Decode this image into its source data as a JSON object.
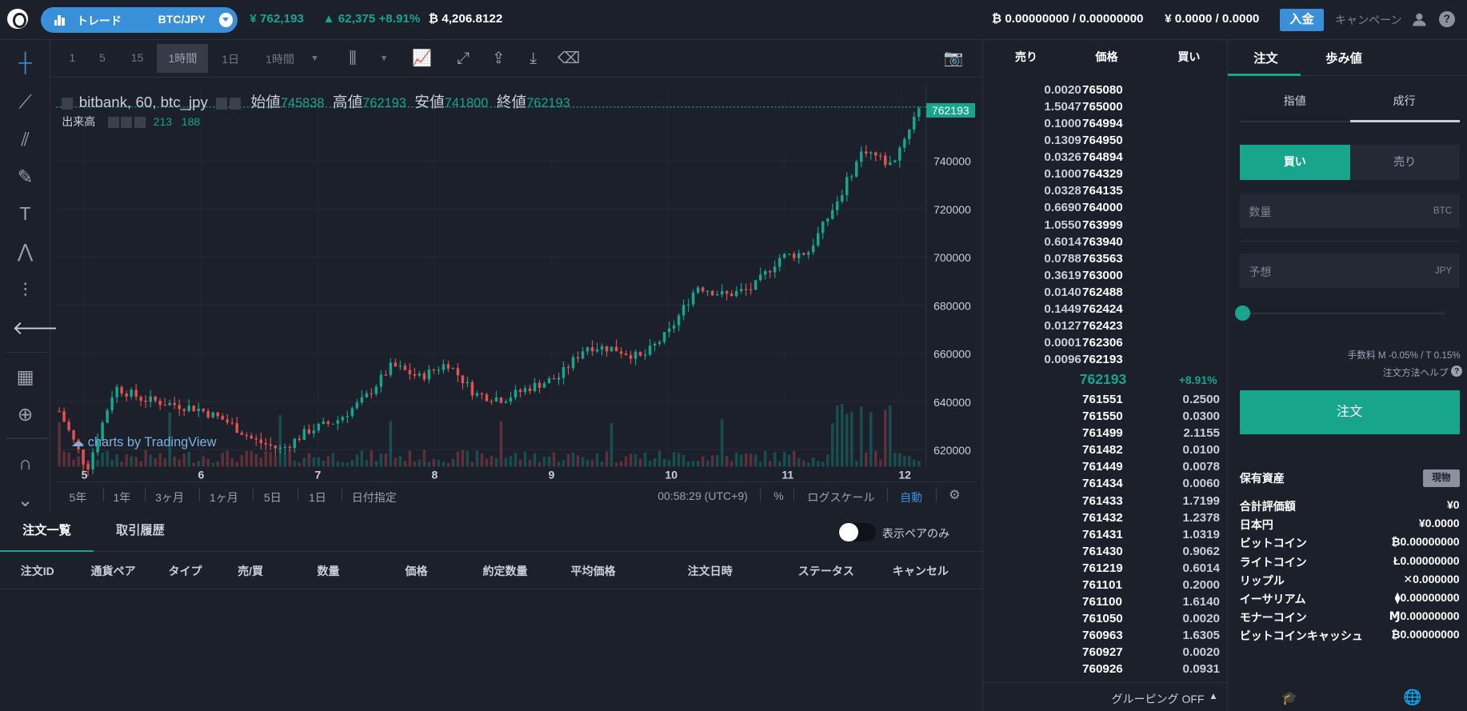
{
  "topbar": {
    "pair_menu_label": "トレード",
    "pair": "BTC/JPY",
    "last_price": "¥ 762,193",
    "change": "62,375 +8.91%",
    "volume": "₿ 4,206.8122",
    "btc_balance": "₿ 0.00000000 / 0.00000000",
    "jpy_balance": "¥ 0.0000 / 0.0000",
    "deposit": "入金",
    "campaign": "キャンペーン",
    "help": "?"
  },
  "chart_toolbar": {
    "intervals": [
      "1",
      "5",
      "15",
      "1時間",
      "1日",
      "1時間"
    ],
    "selected": "1時間"
  },
  "chart_legend": {
    "title": "bitbank, 60, btc_jpy",
    "open_label": "始値",
    "open": "745838",
    "high_label": "高値",
    "high": "762193",
    "low_label": "安値",
    "low": "741800",
    "close_label": "終値",
    "close": "762193",
    "volume_label": "出来高",
    "vol1": "213",
    "vol2": "188",
    "watermark": "charts by TradingView",
    "last_tag": "762193"
  },
  "chart_data": {
    "type": "candlestick",
    "x_ticks": [
      "5",
      "6",
      "7",
      "8",
      "9",
      "10",
      "11",
      "12"
    ],
    "y_ticks": [
      620000,
      640000,
      660000,
      680000,
      700000,
      720000,
      740000
    ],
    "ylim": [
      606000,
      764000
    ],
    "series": [
      {
        "name": "btc_jpy",
        "close": [
          636000,
          612000,
          646000,
          641000,
          639000,
          637000,
          632000,
          624000,
          620000,
          628000,
          632000,
          641000,
          655000,
          650000,
          656000,
          643000,
          641000,
          646000,
          650000,
          663000,
          662000,
          658000,
          669000,
          688000,
          684000,
          687000,
          700000,
          702000,
          722000,
          745000,
          738000,
          762193
        ]
      }
    ],
    "up_color": "#17a58e",
    "down_color": "#e0514f"
  },
  "chart_bottom": {
    "ranges": [
      "5年",
      "1年",
      "3ヶ月",
      "1ヶ月",
      "5日",
      "1日",
      "日付指定"
    ],
    "time": "00:58:29 (UTC+9)",
    "percent": "%",
    "log": "ログスケール",
    "auto": "自動"
  },
  "orders": {
    "tabs": [
      "注文一覧",
      "取引履歴"
    ],
    "toggle_label": "表示ペアのみ",
    "columns": [
      "注文ID",
      "通貨ペア",
      "タイプ",
      "売/買",
      "数量",
      "価格",
      "約定数量",
      "平均価格",
      "注文日時",
      "ステータス",
      "キャンセル"
    ]
  },
  "orderbook": {
    "headers": {
      "sell": "売り",
      "price": "価格",
      "buy": "買い"
    },
    "asks": [
      [
        "0.0020",
        "765080"
      ],
      [
        "1.5047",
        "765000"
      ],
      [
        "0.1000",
        "764994"
      ],
      [
        "0.1309",
        "764950"
      ],
      [
        "0.0326",
        "764894"
      ],
      [
        "0.1000",
        "764329"
      ],
      [
        "0.0328",
        "764135"
      ],
      [
        "0.6690",
        "764000"
      ],
      [
        "1.0550",
        "763999"
      ],
      [
        "0.6014",
        "763940"
      ],
      [
        "0.0788",
        "763563"
      ],
      [
        "0.3619",
        "763000"
      ],
      [
        "0.0140",
        "762488"
      ],
      [
        "0.1449",
        "762424"
      ],
      [
        "0.0127",
        "762423"
      ],
      [
        "0.0001",
        "762306"
      ],
      [
        "0.0096",
        "762193"
      ]
    ],
    "mid_price": "762193",
    "mid_change": "+8.91%",
    "bids": [
      [
        "761551",
        "0.2500"
      ],
      [
        "761550",
        "0.0300"
      ],
      [
        "761499",
        "2.1155"
      ],
      [
        "761482",
        "0.0100"
      ],
      [
        "761449",
        "0.0078"
      ],
      [
        "761434",
        "0.0060"
      ],
      [
        "761433",
        "1.7199"
      ],
      [
        "761432",
        "1.2378"
      ],
      [
        "761431",
        "1.0319"
      ],
      [
        "761430",
        "0.9062"
      ],
      [
        "761219",
        "0.6014"
      ],
      [
        "761101",
        "0.2000"
      ],
      [
        "761100",
        "1.6140"
      ],
      [
        "761050",
        "0.0020"
      ],
      [
        "760963",
        "1.6305"
      ],
      [
        "760927",
        "0.0020"
      ],
      [
        "760926",
        "0.0931"
      ]
    ],
    "grouping": "グルーピング OFF"
  },
  "order_panel": {
    "tabs": [
      "注文",
      "歩み値"
    ],
    "types": [
      "指値",
      "成行"
    ],
    "sides": [
      "買い",
      "売り"
    ],
    "qty_placeholder": "数量",
    "qty_unit": "BTC",
    "est_placeholder": "予想",
    "est_unit": "JPY",
    "fee": "手数料 M -0.05% / T 0.15%",
    "help": "注文方法ヘルプ",
    "submit": "注文",
    "holdings_title": "保有資産",
    "spot": "現物",
    "holdings": [
      [
        "合計評価額",
        "¥0"
      ],
      [
        "日本円",
        "¥0.0000"
      ],
      [
        "ビットコイン",
        "₿0.00000000"
      ],
      [
        "ライトコイン",
        "Ł0.00000000"
      ],
      [
        "リップル",
        "✕0.000000"
      ],
      [
        "イーサリアム",
        "⧫0.00000000"
      ],
      [
        "モナーコイン",
        "Ɱ0.00000000"
      ],
      [
        "ビットコインキャッシュ",
        "₿0.00000000"
      ]
    ]
  }
}
